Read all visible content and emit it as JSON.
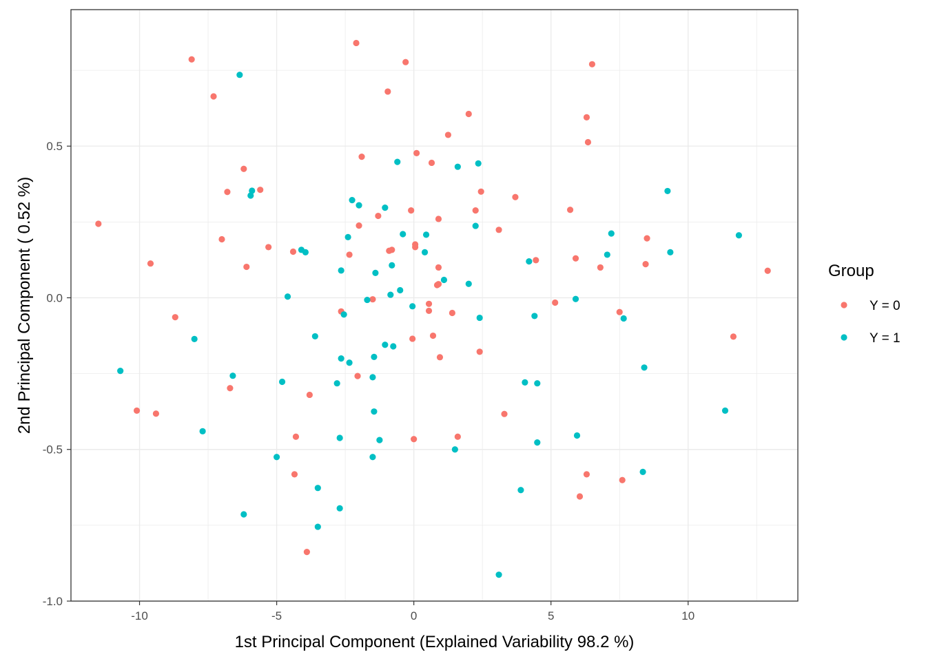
{
  "chart_data": {
    "type": "scatter",
    "xlabel": "1st Principal Component (Explained Variability 98.2 %)",
    "ylabel": "2nd Principal Component ( 0.52 %)",
    "xlim": [
      -12.5,
      14.0
    ],
    "ylim": [
      -1.0,
      0.95
    ],
    "x_ticks": [
      -10,
      -5,
      0,
      5,
      10
    ],
    "x_tick_labels": [
      "-10",
      "-5",
      "0",
      "5",
      "10"
    ],
    "y_ticks": [
      -1.0,
      -0.5,
      0.0,
      0.5
    ],
    "y_tick_labels": [
      "-1.0",
      "-0.5",
      "0.0",
      "0.5"
    ],
    "grid": true,
    "legend": {
      "title": "Group",
      "placement": "right"
    },
    "series": [
      {
        "name": "Y = 0",
        "color": "#F8766D",
        "points": [
          [
            -2.1,
            0.84
          ],
          [
            -0.3,
            0.777
          ],
          [
            6.5,
            0.77
          ],
          [
            -8.1,
            0.786
          ],
          [
            -7.3,
            0.664
          ],
          [
            -0.95,
            0.68
          ],
          [
            2.0,
            0.606
          ],
          [
            6.3,
            0.595
          ],
          [
            1.25,
            0.537
          ],
          [
            6.35,
            0.513
          ],
          [
            -1.9,
            0.465
          ],
          [
            0.1,
            0.477
          ],
          [
            0.65,
            0.445
          ],
          [
            -6.2,
            0.425
          ],
          [
            -6.8,
            0.349
          ],
          [
            -5.6,
            0.356
          ],
          [
            2.45,
            0.35
          ],
          [
            3.7,
            0.332
          ],
          [
            -0.1,
            0.288
          ],
          [
            2.25,
            0.288
          ],
          [
            5.7,
            0.29
          ],
          [
            -1.3,
            0.27
          ],
          [
            0.9,
            0.26
          ],
          [
            -2.0,
            0.238
          ],
          [
            -11.5,
            0.244
          ],
          [
            3.1,
            0.224
          ],
          [
            -7.0,
            0.193
          ],
          [
            8.5,
            0.196
          ],
          [
            -5.3,
            0.167
          ],
          [
            -4.4,
            0.152
          ],
          [
            -0.9,
            0.155
          ],
          [
            -0.8,
            0.158
          ],
          [
            0.05,
            0.176
          ],
          [
            0.05,
            0.167
          ],
          [
            -2.35,
            0.142
          ],
          [
            4.45,
            0.124
          ],
          [
            5.9,
            0.13
          ],
          [
            -9.6,
            0.113
          ],
          [
            -6.1,
            0.102
          ],
          [
            0.9,
            0.1
          ],
          [
            6.8,
            0.1
          ],
          [
            8.45,
            0.111
          ],
          [
            12.9,
            0.089
          ],
          [
            0.9,
            0.045
          ],
          [
            0.85,
            0.042
          ],
          [
            5.15,
            -0.016
          ],
          [
            -1.5,
            -0.005
          ],
          [
            0.55,
            -0.02
          ],
          [
            0.55,
            -0.043
          ],
          [
            -2.65,
            -0.045
          ],
          [
            1.4,
            -0.05
          ],
          [
            7.5,
            -0.047
          ],
          [
            -8.7,
            -0.064
          ],
          [
            0.7,
            -0.125
          ],
          [
            -0.05,
            -0.135
          ],
          [
            11.65,
            -0.128
          ],
          [
            2.4,
            -0.178
          ],
          [
            0.95,
            -0.196
          ],
          [
            -2.05,
            -0.258
          ],
          [
            -6.7,
            -0.298
          ],
          [
            -3.8,
            -0.32
          ],
          [
            -10.1,
            -0.372
          ],
          [
            -9.4,
            -0.382
          ],
          [
            3.3,
            -0.383
          ],
          [
            1.6,
            -0.458
          ],
          [
            -4.3,
            -0.458
          ],
          [
            0.0,
            -0.466
          ],
          [
            -4.35,
            -0.582
          ],
          [
            6.3,
            -0.582
          ],
          [
            7.6,
            -0.601
          ],
          [
            6.05,
            -0.655
          ],
          [
            -3.9,
            -0.838
          ]
        ]
      },
      {
        "name": "Y = 1",
        "color": "#00BFC4",
        "points": [
          [
            -6.35,
            0.735
          ],
          [
            -0.6,
            0.448
          ],
          [
            1.6,
            0.432
          ],
          [
            2.35,
            0.443
          ],
          [
            -5.9,
            0.353
          ],
          [
            -5.95,
            0.337
          ],
          [
            9.25,
            0.352
          ],
          [
            -2.25,
            0.322
          ],
          [
            -2.0,
            0.305
          ],
          [
            -1.05,
            0.297
          ],
          [
            11.85,
            0.206
          ],
          [
            2.25,
            0.237
          ],
          [
            -0.4,
            0.21
          ],
          [
            0.45,
            0.208
          ],
          [
            -2.4,
            0.2
          ],
          [
            7.2,
            0.212
          ],
          [
            -4.1,
            0.158
          ],
          [
            -3.95,
            0.15
          ],
          [
            0.4,
            0.15
          ],
          [
            9.35,
            0.15
          ],
          [
            7.05,
            0.142
          ],
          [
            4.2,
            0.12
          ],
          [
            -0.8,
            0.107
          ],
          [
            -2.65,
            0.09
          ],
          [
            -1.4,
            0.082
          ],
          [
            1.1,
            0.059
          ],
          [
            2.0,
            0.046
          ],
          [
            -0.5,
            0.025
          ],
          [
            -0.85,
            0.01
          ],
          [
            -4.6,
            0.004
          ],
          [
            -1.7,
            -0.007
          ],
          [
            5.9,
            -0.004
          ],
          [
            -0.05,
            -0.028
          ],
          [
            -2.55,
            -0.055
          ],
          [
            4.4,
            -0.06
          ],
          [
            2.4,
            -0.066
          ],
          [
            7.65,
            -0.068
          ],
          [
            -3.6,
            -0.127
          ],
          [
            -8.0,
            -0.136
          ],
          [
            -1.05,
            -0.155
          ],
          [
            -0.75,
            -0.16
          ],
          [
            -1.45,
            -0.195
          ],
          [
            -2.65,
            -0.2
          ],
          [
            -2.35,
            -0.214
          ],
          [
            8.4,
            -0.23
          ],
          [
            -10.7,
            -0.241
          ],
          [
            -6.6,
            -0.257
          ],
          [
            -1.5,
            -0.262
          ],
          [
            -4.8,
            -0.277
          ],
          [
            -2.8,
            -0.282
          ],
          [
            4.05,
            -0.279
          ],
          [
            4.5,
            -0.282
          ],
          [
            11.35,
            -0.372
          ],
          [
            -1.45,
            -0.375
          ],
          [
            -7.7,
            -0.44
          ],
          [
            5.95,
            -0.454
          ],
          [
            -2.7,
            -0.462
          ],
          [
            -1.25,
            -0.469
          ],
          [
            4.5,
            -0.477
          ],
          [
            1.5,
            -0.5
          ],
          [
            -5.0,
            -0.525
          ],
          [
            -1.5,
            -0.525
          ],
          [
            8.35,
            -0.574
          ],
          [
            -3.5,
            -0.627
          ],
          [
            3.9,
            -0.634
          ],
          [
            -2.7,
            -0.694
          ],
          [
            -6.2,
            -0.714
          ],
          [
            -3.5,
            -0.755
          ],
          [
            3.1,
            -0.913
          ]
        ]
      }
    ]
  }
}
